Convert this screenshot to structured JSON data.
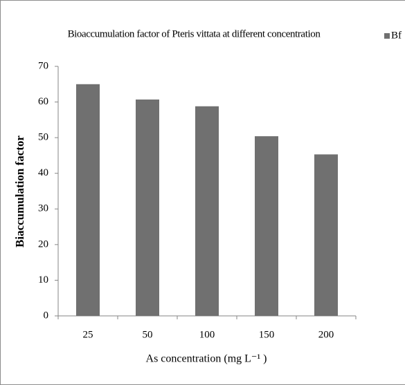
{
  "chart_data": {
    "type": "bar",
    "title": "Bioaccumulation factor of Pteris vittata at different concentration",
    "x_label": "As concentration (mg L⁻¹ )",
    "y_label": "Biaccumulation factor",
    "categories": [
      "25",
      "50",
      "100",
      "150",
      "200"
    ],
    "series": [
      {
        "name": "Bf",
        "color": "#707070",
        "values": [
          65,
          60.7,
          58.8,
          50.4,
          45.3
        ]
      }
    ],
    "ylim": [
      0,
      70
    ],
    "yticks": [
      0,
      10,
      20,
      30,
      40,
      50,
      60,
      70
    ],
    "grid": false,
    "legend": "top-right"
  }
}
